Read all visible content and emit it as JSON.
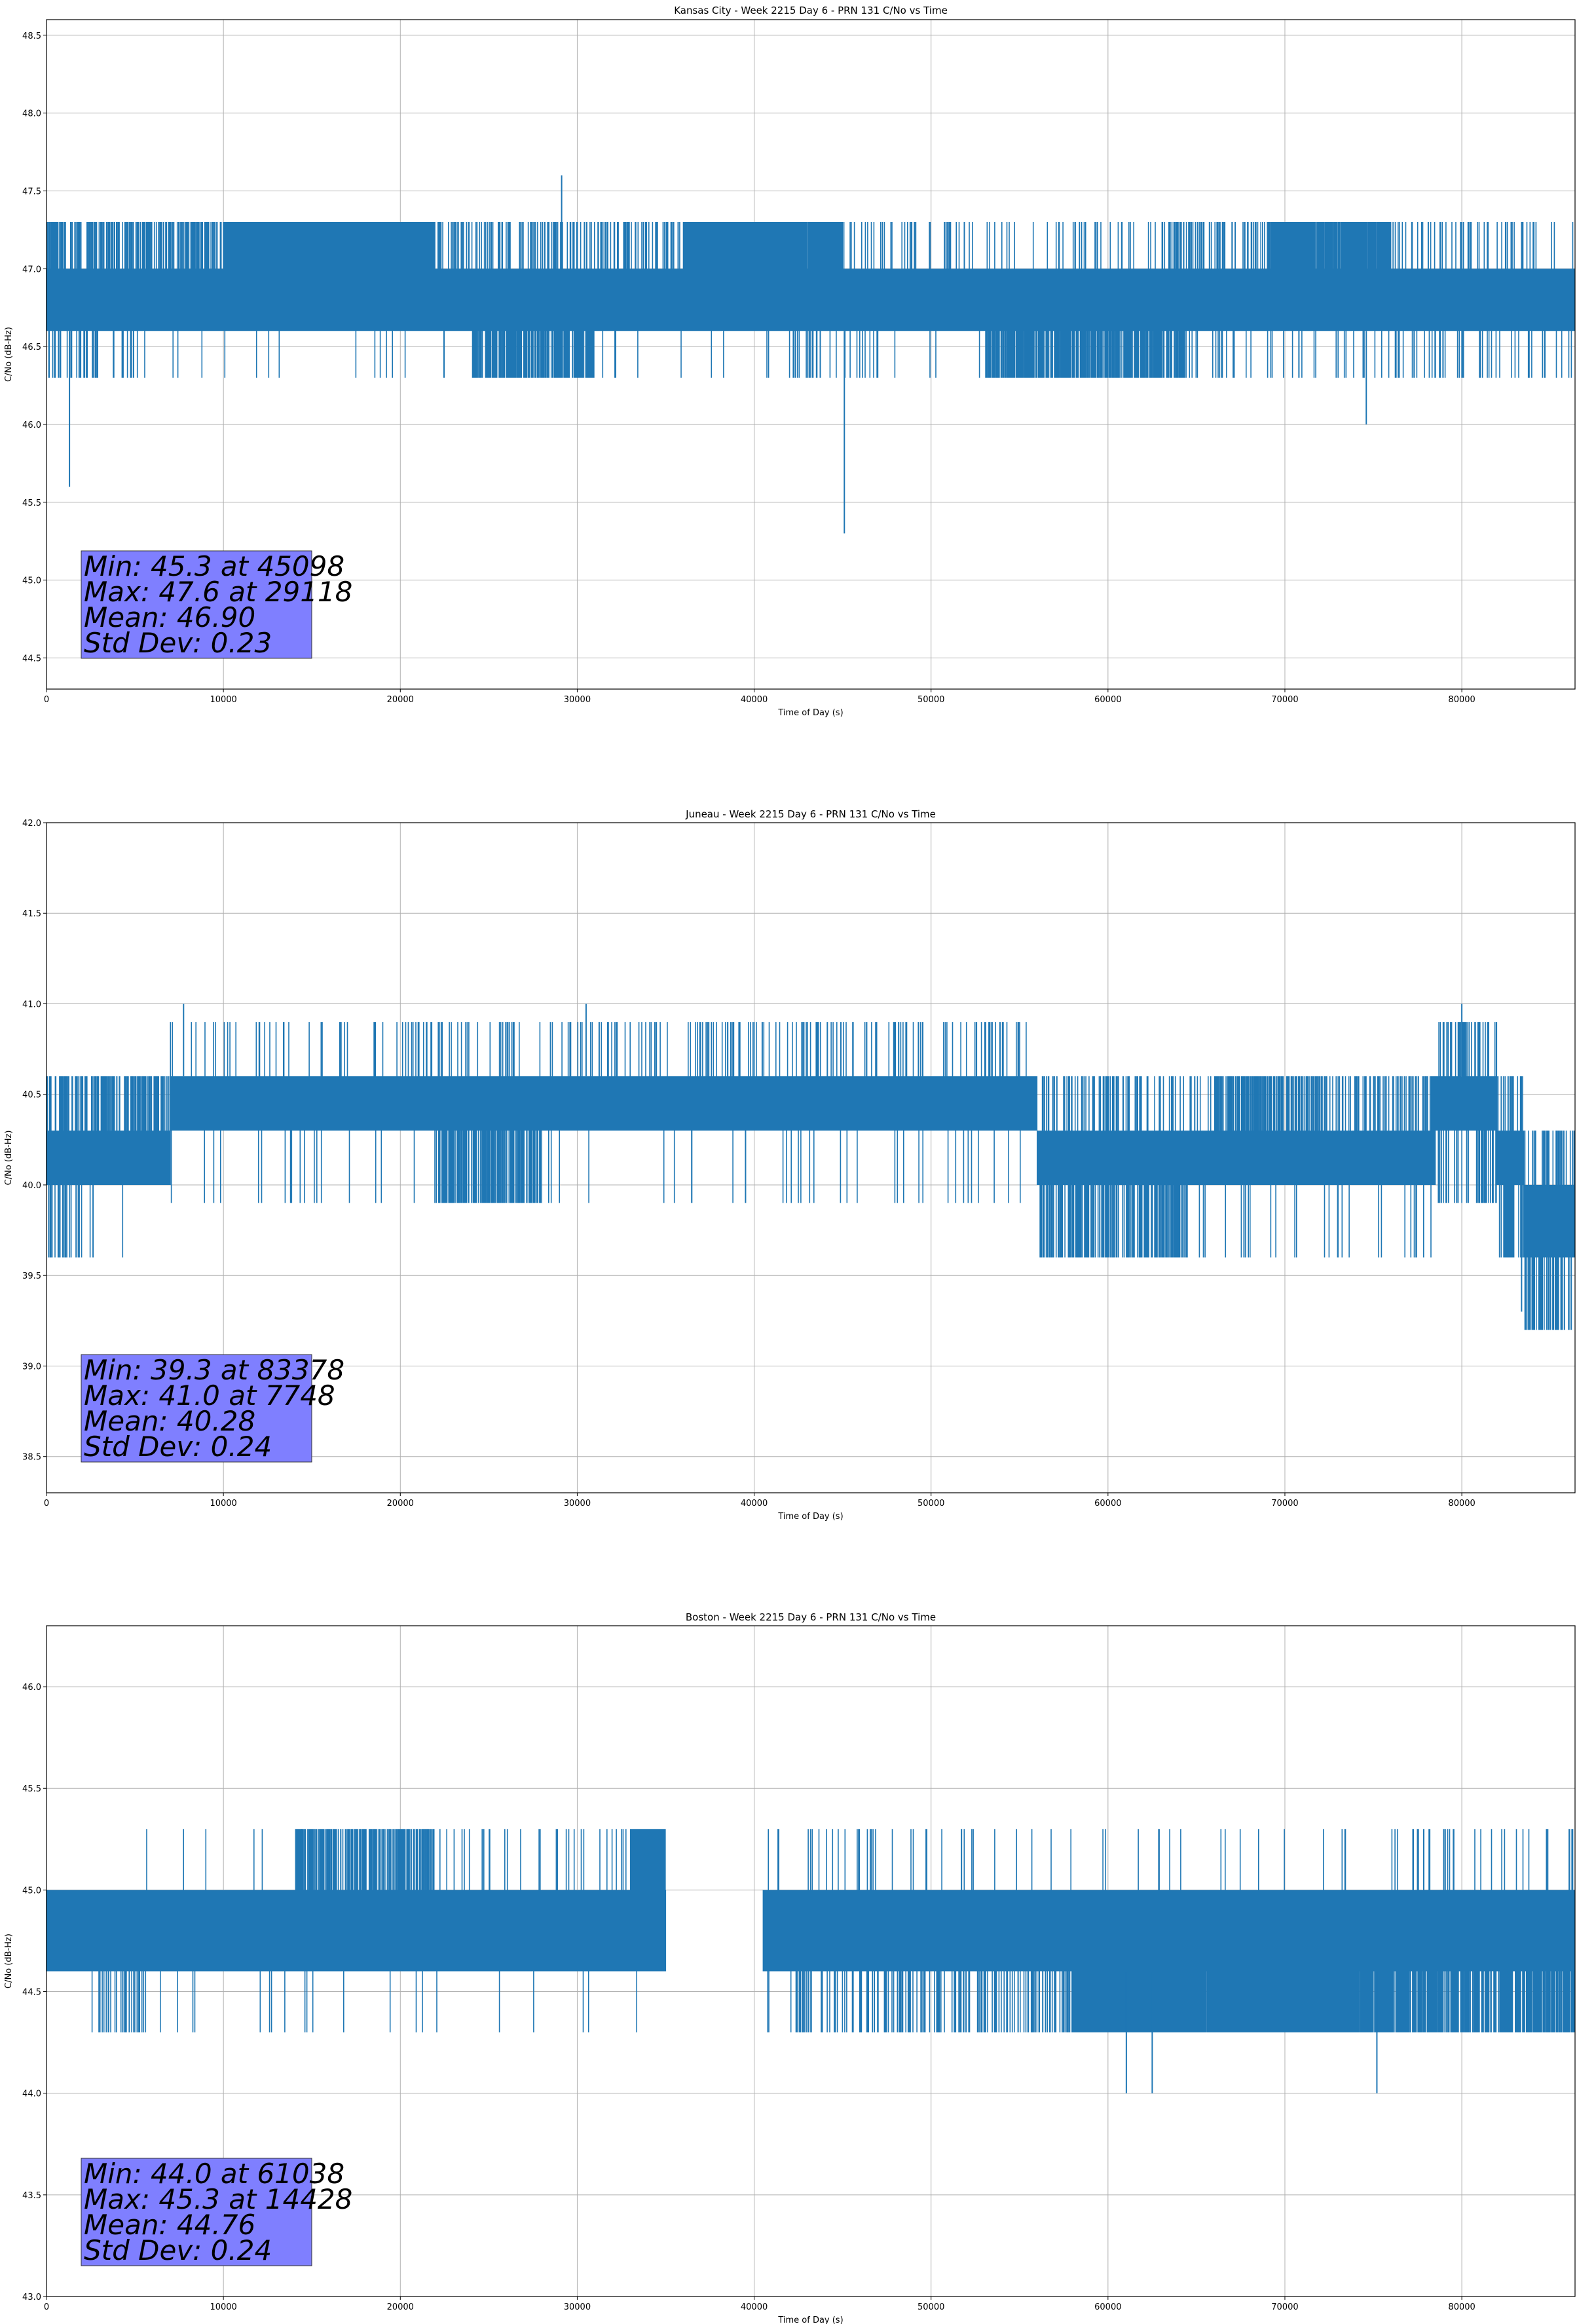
{
  "chart_data": [
    {
      "type": "line",
      "title": "Kansas City - Week 2215 Day 6 - PRN 131 C/No vs Time",
      "xlabel": "Time of Day (s)",
      "ylabel": "C/No (dB-Hz)",
      "xlim": [
        0,
        86400
      ],
      "ylim": [
        44.3,
        48.6
      ],
      "xticks": [
        0,
        10000,
        20000,
        30000,
        40000,
        50000,
        60000,
        70000,
        80000
      ],
      "yticks": [
        "44.5",
        "45.0",
        "45.5",
        "46.0",
        "46.5",
        "47.0",
        "47.5",
        "48.0",
        "48.5"
      ],
      "grid": true,
      "series_color": "#1f77b4",
      "base_levels": [
        46.6,
        47.0
      ],
      "upper_level": 47.3,
      "lower_level": 46.3,
      "upper_segments": [
        [
          0,
          1000,
          0.5
        ],
        [
          1000,
          10000,
          0.25
        ],
        [
          10000,
          22000,
          0.92
        ],
        [
          22000,
          36000,
          0.18
        ],
        [
          36000,
          45000,
          0.9
        ],
        [
          45000,
          63000,
          0.06
        ],
        [
          63000,
          69000,
          0.2
        ],
        [
          69000,
          76000,
          0.75
        ],
        [
          76000,
          86400,
          0.1
        ]
      ],
      "lower_segments": [
        [
          0,
          5000,
          0.15
        ],
        [
          5000,
          24000,
          0.01
        ],
        [
          24000,
          31000,
          0.5
        ],
        [
          31000,
          42000,
          0.02
        ],
        [
          42000,
          47000,
          0.08
        ],
        [
          47000,
          53000,
          0.02
        ],
        [
          53000,
          64500,
          0.45
        ],
        [
          64500,
          74000,
          0.05
        ],
        [
          74000,
          86400,
          0.06
        ]
      ],
      "spikes": [
        [
          1300,
          45.6
        ],
        [
          29118,
          47.6
        ],
        [
          45098,
          45.3
        ],
        [
          74600,
          46.0
        ]
      ],
      "stats_lines": [
        "Min: 45.3 at 45098",
        "Max: 47.6 at 29118",
        "Mean: 46.90",
        "Std Dev: 0.23"
      ],
      "stats_box_color": "#7f7fff"
    },
    {
      "type": "line",
      "title": "Juneau - Week 2215 Day 6 - PRN 131 C/No vs Time",
      "xlabel": "Time of Day (s)",
      "ylabel": "C/No (dB-Hz)",
      "xlim": [
        0,
        86400
      ],
      "ylim": [
        38.3,
        42.0
      ],
      "xticks": [
        0,
        10000,
        20000,
        30000,
        40000,
        50000,
        60000,
        70000,
        80000
      ],
      "yticks": [
        "38.5",
        "39.0",
        "39.5",
        "40.0",
        "40.5",
        "41.0",
        "41.5",
        "42.0"
      ],
      "grid": true,
      "series_color": "#1f77b4",
      "base_levels_segments": [
        [
          0,
          7000,
          40.0,
          40.3
        ],
        [
          7000,
          56000,
          40.3,
          40.6
        ],
        [
          56000,
          78500,
          40.0,
          40.3
        ],
        [
          78500,
          82000,
          40.3,
          40.6
        ],
        [
          82000,
          83500,
          40.0,
          40.3
        ],
        [
          83500,
          86400,
          39.6,
          40.0
        ]
      ],
      "upper_level_offset": 0.3,
      "lower_level_offset": 0.4,
      "upper_segments": [
        [
          0,
          7000,
          0.3
        ],
        [
          7000,
          20000,
          0.05
        ],
        [
          20000,
          56000,
          0.08
        ],
        [
          56000,
          66000,
          0.15
        ],
        [
          66000,
          72000,
          0.35
        ],
        [
          72000,
          86400,
          0.2
        ]
      ],
      "lower_segments": [
        [
          0,
          3000,
          0.15
        ],
        [
          3000,
          22000,
          0.02
        ],
        [
          22000,
          28000,
          0.35
        ],
        [
          28000,
          56000,
          0.02
        ],
        [
          56000,
          64500,
          0.35
        ],
        [
          64500,
          77000,
          0.03
        ],
        [
          77000,
          81000,
          0.1
        ],
        [
          81000,
          86400,
          0.3
        ]
      ],
      "spikes": [
        [
          7748,
          41.0
        ],
        [
          30500,
          41.0
        ],
        [
          83378,
          39.3
        ],
        [
          80000,
          41.0
        ]
      ],
      "stats_lines": [
        "Min: 39.3 at 83378",
        "Max: 41.0 at 7748",
        "Mean: 40.28",
        "Std Dev: 0.24"
      ],
      "stats_box_color": "#7f7fff"
    },
    {
      "type": "line",
      "title": "Boston - Week 2215 Day 6 - PRN 131 C/No vs Time",
      "xlabel": "Time of Day (s)",
      "ylabel": "C/No (dB-Hz)",
      "xlim": [
        0,
        86400
      ],
      "ylim": [
        43.0,
        46.3
      ],
      "xticks": [
        0,
        10000,
        20000,
        30000,
        40000,
        50000,
        60000,
        70000,
        80000
      ],
      "yticks": [
        "43.0",
        "43.5",
        "44.0",
        "44.5",
        "45.0",
        "45.5",
        "46.0"
      ],
      "grid": true,
      "series_color": "#1f77b4",
      "base_levels": [
        44.6,
        45.0
      ],
      "upper_level": 45.3,
      "lower_level": 44.3,
      "upper_segments": [
        [
          0,
          14000,
          0.01
        ],
        [
          14000,
          22000,
          0.35
        ],
        [
          22000,
          33000,
          0.05
        ],
        [
          33000,
          40000,
          0.88
        ],
        [
          40000,
          53000,
          0.03
        ],
        [
          53000,
          76000,
          0.02
        ],
        [
          76000,
          86400,
          0.04
        ]
      ],
      "lower_segments": [
        [
          0,
          3000,
          0.02
        ],
        [
          3000,
          5500,
          0.2
        ],
        [
          5500,
          42000,
          0.01
        ],
        [
          42000,
          58000,
          0.15
        ],
        [
          58000,
          75000,
          0.85
        ],
        [
          75000,
          86400,
          0.5
        ]
      ],
      "gaps": [
        [
          35000,
          40500
        ]
      ],
      "spikes": [
        [
          61038,
          44.0
        ],
        [
          62500,
          44.0
        ],
        [
          75200,
          44.0
        ],
        [
          14428,
          45.3
        ]
      ],
      "stats_lines": [
        "Min: 44.0 at 61038",
        "Max: 45.3 at 14428",
        "Mean: 44.76",
        "Std Dev: 0.24"
      ],
      "stats_box_color": "#7f7fff"
    }
  ]
}
